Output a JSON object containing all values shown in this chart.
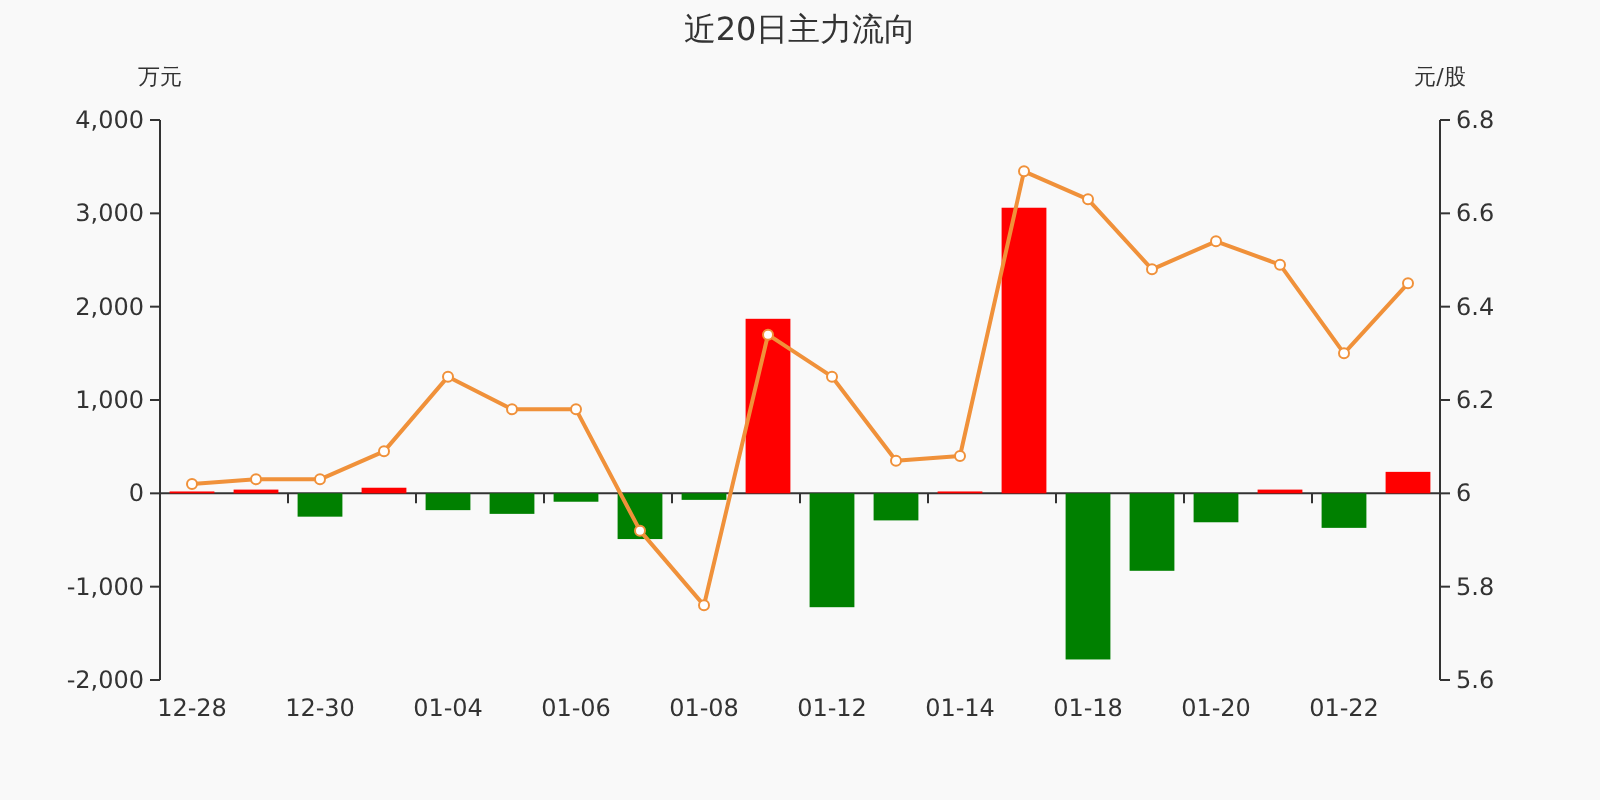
{
  "chart_data": {
    "type": "bar",
    "title": "近20日主力流向",
    "ylabel": "万元",
    "y2label": "元/股",
    "categories": [
      "12-28",
      null,
      "12-30",
      null,
      "01-04",
      null,
      "01-06",
      null,
      "01-08",
      null,
      "01-12",
      null,
      "01-14",
      null,
      "01-18",
      null,
      "01-20",
      null,
      "01-22",
      null
    ],
    "series": [
      {
        "values": [
          20,
          40,
          -250,
          60,
          -180,
          -220,
          -90,
          -490,
          -70,
          1870,
          -1220,
          -290,
          20,
          3060,
          -1780,
          -830,
          -310,
          40,
          -370,
          230
        ],
        "colors": [
          "#ff0000",
          "#ff0000",
          "#008000",
          "#ff0000",
          "#008000",
          "#008000",
          "#008000",
          "#008000",
          "#008000",
          "#ff0000",
          "#008000",
          "#008000",
          "#ff0000",
          "#ff0000",
          "#008000",
          "#008000",
          "#008000",
          "#ff0000",
          "#008000",
          "#ff0000"
        ]
      },
      {
        "type": "line",
        "axis": "y2",
        "color": "#f0913a",
        "values": [
          6.02,
          6.03,
          6.03,
          6.09,
          6.25,
          6.18,
          6.18,
          5.92,
          5.76,
          6.34,
          6.25,
          6.07,
          6.08,
          6.69,
          6.63,
          6.48,
          6.54,
          6.49,
          6.3,
          6.45
        ]
      }
    ],
    "marker": "circle",
    "ylim": [
      -2000,
      4000
    ],
    "yticks": [
      {
        "value": -2000,
        "label": "-2,000"
      },
      {
        "value": -1000,
        "label": "-1,000"
      },
      0,
      {
        "value": 1000,
        "label": "1,000"
      },
      {
        "value": 2000,
        "label": "2,000"
      },
      {
        "value": 3000,
        "label": "3,000"
      },
      {
        "value": 4000,
        "label": "4,000"
      }
    ],
    "y2lim": [
      5.6,
      6.8
    ],
    "y2ticks": [
      5.6,
      5.8,
      6,
      6.2,
      6.4,
      6.6,
      6.8
    ]
  }
}
